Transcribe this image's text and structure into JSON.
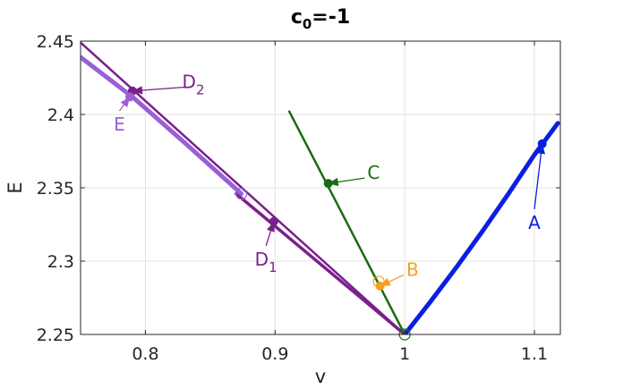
{
  "chart_data": {
    "type": "line",
    "title": "c",
    "title_sub": "0",
    "title_suffix": "=-1",
    "xlabel": "v",
    "ylabel": "E",
    "xlim": [
      0.75,
      1.12
    ],
    "ylim": [
      2.25,
      2.45
    ],
    "xticks": [
      0.8,
      0.9,
      1.0,
      1.1
    ],
    "xtick_labels": [
      "0.8",
      "0.9",
      "1",
      "1.1"
    ],
    "yticks": [
      2.25,
      2.3,
      2.35,
      2.4,
      2.45
    ],
    "ytick_labels": [
      "2.25",
      "2.3",
      "2.35",
      "2.4",
      "2.45"
    ],
    "grid": true,
    "series": [
      {
        "color": "#0a1fe0",
        "width": 5,
        "x": [
          1.0,
          1.02,
          1.04,
          1.06,
          1.08,
          1.1,
          1.118
        ],
        "y": [
          2.25,
          2.2725,
          2.296,
          2.3205,
          2.346,
          2.3725,
          2.394
        ]
      },
      {
        "color": "#7b1f8c",
        "width": 2.5,
        "x": [
          0.75,
          1.0
        ],
        "y": [
          2.449,
          2.25
        ]
      },
      {
        "color": "#7b1f8c",
        "width": 3.5,
        "x": [
          0.87,
          1.0
        ],
        "y": [
          2.346,
          2.25
        ]
      },
      {
        "color": "#9a5fd8",
        "width": 5,
        "x": [
          0.75,
          0.79,
          0.83,
          0.874
        ],
        "y": [
          2.439,
          2.412,
          2.381,
          2.346
        ]
      },
      {
        "color": "#1a6b12",
        "width": 2.5,
        "x": [
          0.911,
          1.0
        ],
        "y": [
          2.402,
          2.25
        ]
      }
    ],
    "open_markers": [
      {
        "x": 1.0,
        "y": 2.25,
        "color": "#1a6b12"
      },
      {
        "x": 0.874,
        "y": 2.346,
        "color": "#9a5fd8"
      },
      {
        "x": 0.98,
        "y": 2.286,
        "color": "#f5a01a"
      }
    ],
    "annotations": [
      {
        "label": "A",
        "sub": "",
        "color": "#0a1fe0",
        "px": 1.106,
        "py": 2.38,
        "tx": 1.1,
        "ty": 2.322
      },
      {
        "label": "B",
        "sub": "",
        "color": "#f5a01a",
        "px": 0.981,
        "py": 2.283,
        "tx": 1.006,
        "ty": 2.29
      },
      {
        "label": "C",
        "sub": "",
        "color": "#1a6b12",
        "px": 0.941,
        "py": 2.353,
        "tx": 0.976,
        "ty": 2.356
      },
      {
        "label": "D",
        "sub": "1",
        "color": "#7b1f8c",
        "px": 0.899,
        "py": 2.327,
        "tx": 0.893,
        "ty": 2.297
      },
      {
        "label": "D",
        "sub": "2",
        "color": "#7b1f8c",
        "px": 0.79,
        "py": 2.416,
        "tx": 0.837,
        "ty": 2.418
      },
      {
        "label": "E",
        "sub": "",
        "color": "#9a5fd8",
        "px": 0.788,
        "py": 2.412,
        "tx": 0.78,
        "ty": 2.389
      }
    ]
  }
}
